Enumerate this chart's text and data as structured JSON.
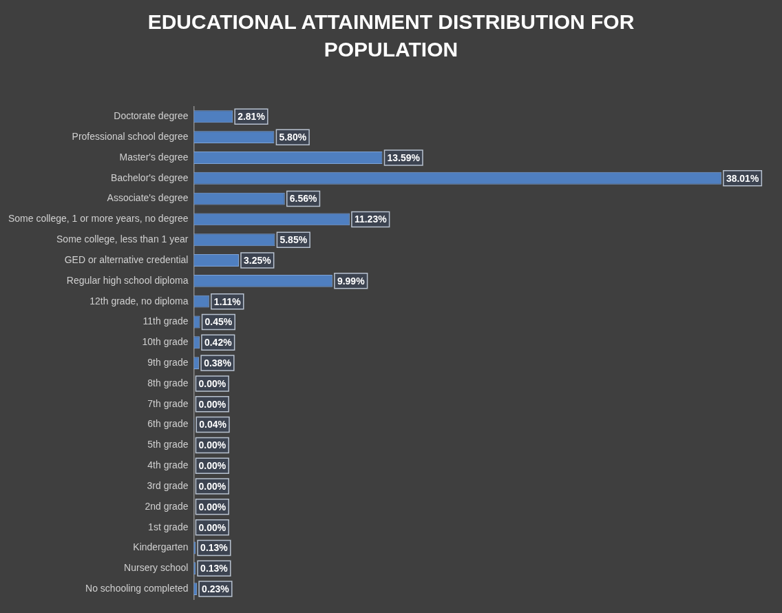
{
  "chart_data": {
    "type": "bar",
    "orientation": "horizontal",
    "title": "EDUCATIONAL ATTAINMENT DISTRIBUTION FOR POPULATION",
    "categories": [
      "Doctorate degree",
      "Professional school degree",
      "Master's degree",
      "Bachelor's degree",
      "Associate's degree",
      "Some college, 1 or more years, no degree",
      "Some college, less than 1 year",
      "GED or alternative credential",
      "Regular high school diploma",
      "12th grade, no diploma",
      "11th grade",
      "10th grade",
      "9th grade",
      "8th grade",
      "7th grade",
      "6th grade",
      "5th grade",
      "4th grade",
      "3rd grade",
      "2nd grade",
      "1st grade",
      "Kindergarten",
      "Nursery school",
      "No schooling completed"
    ],
    "values": [
      2.81,
      5.8,
      13.59,
      38.01,
      6.56,
      11.23,
      5.85,
      3.25,
      9.99,
      1.11,
      0.45,
      0.42,
      0.38,
      0.0,
      0.0,
      0.04,
      0.0,
      0.0,
      0.0,
      0.0,
      0.0,
      0.13,
      0.13,
      0.23
    ],
    "value_labels": [
      "2.81%",
      "5.80%",
      "13.59%",
      "38.01%",
      "6.56%",
      "11.23%",
      "5.85%",
      "3.25%",
      "9.99%",
      "1.11%",
      "0.45%",
      "0.42%",
      "0.38%",
      "0.00%",
      "0.00%",
      "0.04%",
      "0.00%",
      "0.00%",
      "0.00%",
      "0.00%",
      "0.00%",
      "0.13%",
      "0.13%",
      "0.23%"
    ],
    "color": "#4f7fc0",
    "grid": false,
    "legend": false
  }
}
